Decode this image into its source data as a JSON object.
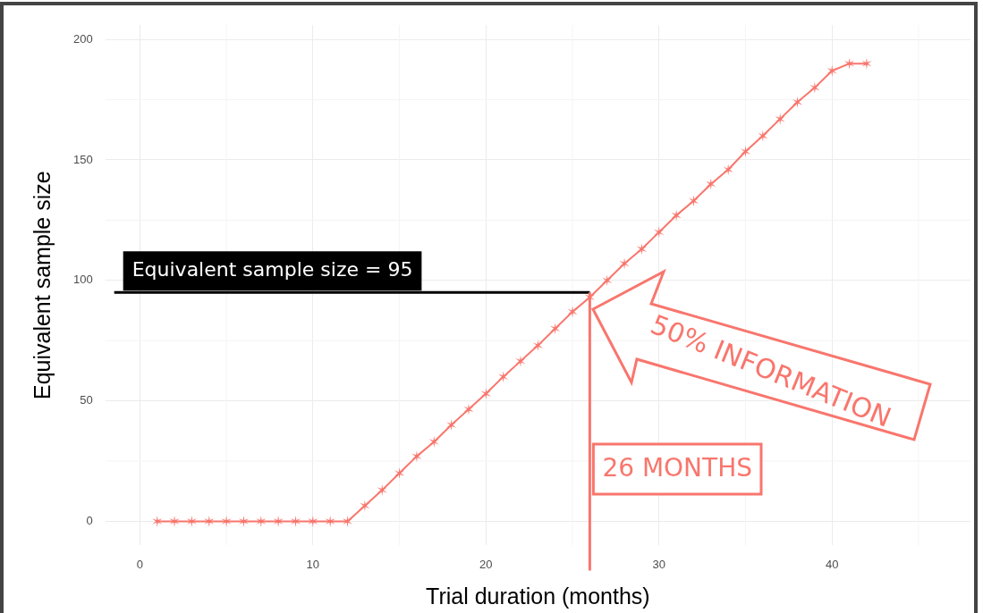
{
  "chart_data": {
    "type": "line",
    "xlabel": "Trial duration (months)",
    "ylabel": "Equivalent sample size",
    "x": [
      1,
      2,
      3,
      4,
      5,
      6,
      7,
      8,
      9,
      10,
      11,
      12,
      13,
      14,
      15,
      16,
      17,
      18,
      19,
      20,
      21,
      22,
      23,
      24,
      25,
      26,
      27,
      28,
      29,
      30,
      31,
      32,
      33,
      34,
      35,
      36,
      37,
      38,
      39,
      40,
      41,
      42
    ],
    "series": [
      {
        "color": "#f8766d",
        "values": [
          0,
          0,
          0,
          0,
          0,
          0,
          0,
          0,
          0,
          0,
          0,
          0,
          6.5,
          13,
          20,
          27,
          33,
          40,
          46.5,
          53,
          60,
          66.5,
          73,
          80,
          87,
          93,
          100,
          107,
          113,
          120,
          127,
          133,
          140,
          146,
          153.5,
          160,
          167,
          174,
          180,
          187,
          190,
          190
        ]
      }
    ],
    "xlim": [
      -2,
      48
    ],
    "xticks": [
      0,
      10,
      20,
      30,
      40
    ],
    "ylim": [
      -10,
      206
    ],
    "yticks": [
      0,
      50,
      100,
      150,
      200
    ],
    "grid": true,
    "legend": false,
    "marker": "cross",
    "line_style": "solid",
    "ref_lines": [
      {
        "axis": "y",
        "value": 95,
        "label": "Equivalent sample size = 95",
        "color": "#000000"
      },
      {
        "axis": "x",
        "value": 26,
        "label": "26 MONTHS",
        "color": "#f8766d"
      }
    ],
    "annotations": [
      "50% INFORMATION"
    ]
  }
}
